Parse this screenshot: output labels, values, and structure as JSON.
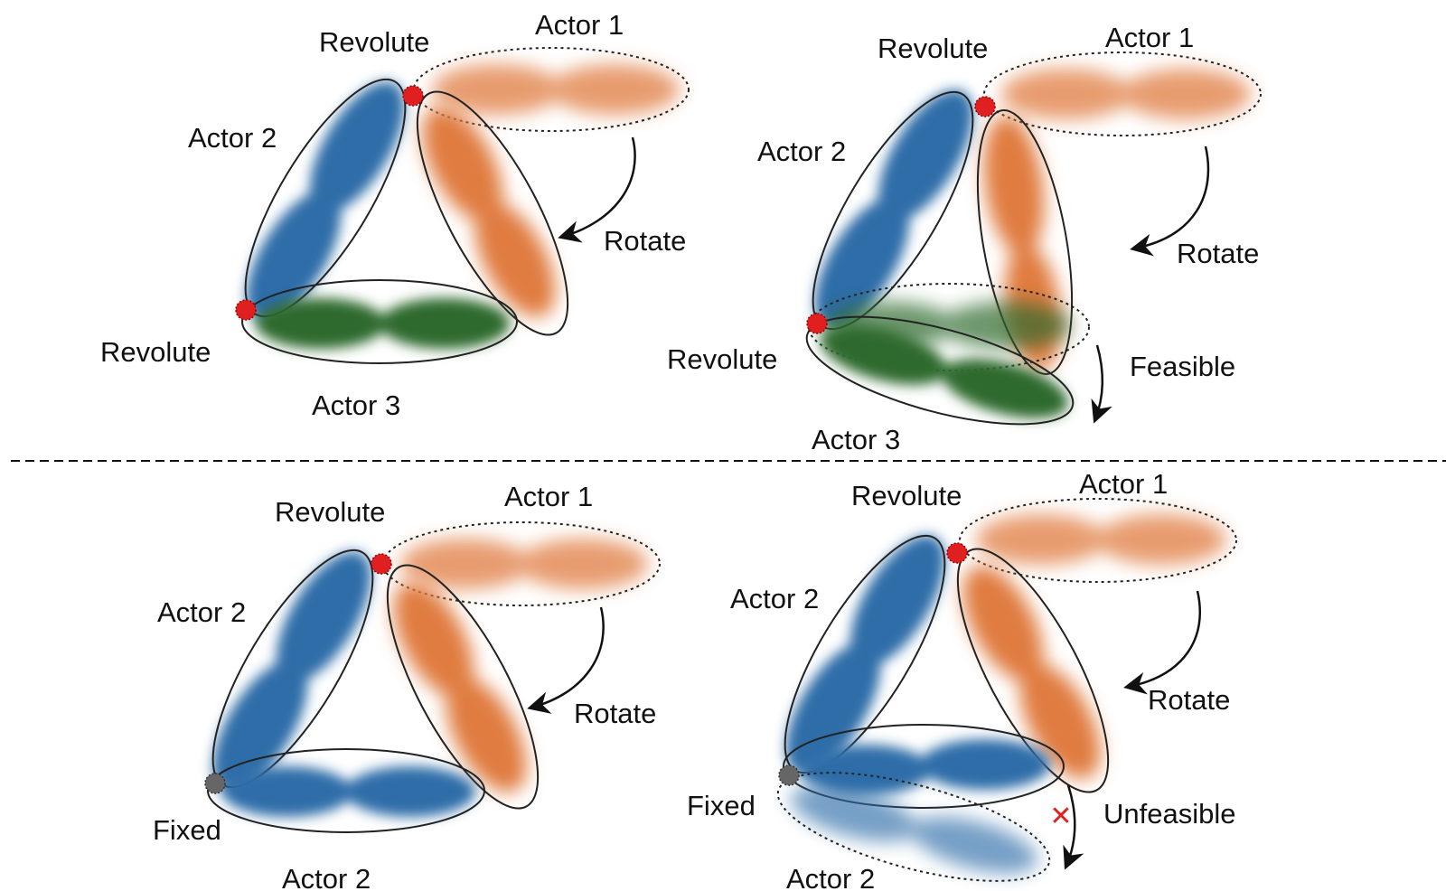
{
  "colors": {
    "actor_orange": "#e07b3f",
    "actor_blue": "#2f6da8",
    "actor_green": "#2e6b2e",
    "revolute_joint": "#e02020",
    "fixed_joint": "#666666",
    "unfeasible_mark": "#e02020"
  },
  "panels": {
    "top_left": {
      "actor1": "Actor 1",
      "actor2": "Actor 2",
      "actor3": "Actor 3",
      "revolute_top": "Revolute",
      "revolute_bottom": "Revolute",
      "rotate": "Rotate"
    },
    "top_right": {
      "actor1": "Actor 1",
      "actor2": "Actor 2",
      "actor3": "Actor 3",
      "revolute_top": "Revolute",
      "revolute_bottom": "Revolute",
      "rotate": "Rotate",
      "status": "Feasible"
    },
    "bottom_left": {
      "actor1": "Actor 1",
      "actor2_upper": "Actor 2",
      "actor2_lower": "Actor 2",
      "revolute_top": "Revolute",
      "fixed": "Fixed",
      "rotate": "Rotate"
    },
    "bottom_right": {
      "actor1": "Actor 1",
      "actor2_upper": "Actor 2",
      "actor2_lower": "Actor 2",
      "revolute_top": "Revolute",
      "fixed": "Fixed",
      "rotate": "Rotate",
      "status": "Unfeasible",
      "status_mark": "✕"
    }
  }
}
